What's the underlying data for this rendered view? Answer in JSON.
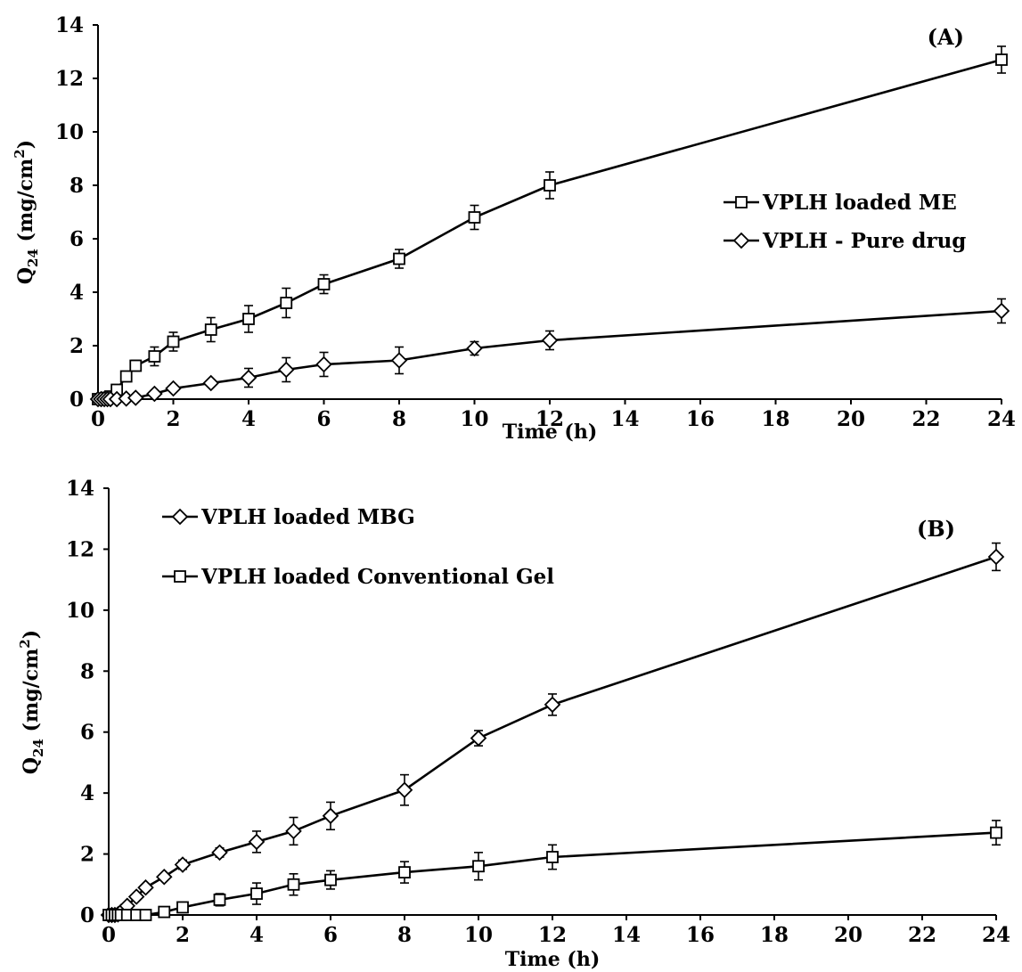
{
  "chart_data": [
    {
      "type": "line",
      "panel_label": "(A)",
      "xlabel": "Time (h)",
      "ylabel_main": "Q",
      "ylabel_sub": "24",
      "ylabel_unit": " (mg/cm",
      "ylabel_sup": "2",
      "ylabel_close": ")",
      "xlim": [
        0,
        24
      ],
      "ylim": [
        0,
        14
      ],
      "x_tick_labels": [
        "0",
        "2",
        "4",
        "6",
        "8",
        "10",
        "12",
        "14",
        "16",
        "18",
        "20",
        "22",
        "24"
      ],
      "y_tick_labels": [
        "0",
        "2",
        "4",
        "6",
        "8",
        "10",
        "12",
        "14"
      ],
      "legend_position": "right",
      "series": [
        {
          "name": "VPLH loaded ME",
          "marker": "square",
          "x": [
            0,
            0.083,
            0.167,
            0.25,
            0.33,
            0.5,
            0.75,
            1,
            1.5,
            2,
            3,
            4,
            5,
            6,
            8,
            10,
            12,
            24
          ],
          "y": [
            0,
            0,
            0.02,
            0.05,
            0.1,
            0.35,
            0.85,
            1.25,
            1.6,
            2.15,
            2.6,
            3.0,
            3.6,
            4.3,
            5.25,
            6.8,
            8.0,
            12.7
          ],
          "err": [
            0,
            0,
            0,
            0,
            0,
            0.1,
            0.15,
            0.2,
            0.35,
            0.35,
            0.45,
            0.5,
            0.55,
            0.35,
            0.35,
            0.45,
            0.5,
            0.5
          ]
        },
        {
          "name": "VPLH - Pure drug",
          "marker": "diamond",
          "x": [
            0,
            0.083,
            0.167,
            0.25,
            0.33,
            0.5,
            0.75,
            1,
            1.5,
            2,
            3,
            4,
            5,
            6,
            8,
            10,
            12,
            24
          ],
          "y": [
            0,
            0,
            0,
            0,
            0,
            0,
            0.02,
            0.05,
            0.2,
            0.4,
            0.6,
            0.8,
            1.1,
            1.3,
            1.45,
            1.9,
            2.2,
            3.3
          ],
          "err": [
            0,
            0,
            0,
            0,
            0,
            0,
            0,
            0,
            0,
            0.1,
            0.1,
            0.35,
            0.45,
            0.45,
            0.5,
            0.25,
            0.35,
            0.45
          ]
        }
      ]
    },
    {
      "type": "line",
      "panel_label": "(B)",
      "xlabel": "Time (h)",
      "ylabel_main": "Q",
      "ylabel_sub": "24",
      "ylabel_unit": " (mg/cm",
      "ylabel_sup": "2",
      "ylabel_close": ")",
      "xlim": [
        0,
        24
      ],
      "ylim": [
        0,
        14
      ],
      "x_tick_labels": [
        "0",
        "2",
        "4",
        "6",
        "8",
        "10",
        "12",
        "14",
        "16",
        "18",
        "20",
        "22",
        "24"
      ],
      "y_tick_labels": [
        "0",
        "2",
        "4",
        "6",
        "8",
        "10",
        "12",
        "14"
      ],
      "legend_position": "top-left",
      "series": [
        {
          "name": "VPLH loaded MBG",
          "marker": "diamond",
          "x": [
            0,
            0.083,
            0.167,
            0.25,
            0.33,
            0.5,
            0.75,
            1,
            1.5,
            2,
            3,
            4,
            5,
            6,
            8,
            10,
            12,
            24
          ],
          "y": [
            0,
            0,
            0,
            0.02,
            0.1,
            0.3,
            0.6,
            0.9,
            1.25,
            1.65,
            2.05,
            2.4,
            2.75,
            3.25,
            4.1,
            5.8,
            6.9,
            11.75
          ],
          "err": [
            0,
            0,
            0,
            0,
            0,
            0,
            0.1,
            0.1,
            0.1,
            0.15,
            0.15,
            0.35,
            0.45,
            0.45,
            0.5,
            0.25,
            0.35,
            0.45
          ]
        },
        {
          "name": "VPLH loaded Conventional Gel",
          "marker": "square",
          "x": [
            0,
            0.083,
            0.167,
            0.25,
            0.33,
            0.5,
            0.75,
            1,
            1.5,
            2,
            3,
            4,
            5,
            6,
            8,
            10,
            12,
            24
          ],
          "y": [
            0,
            0,
            0,
            0,
            0,
            0,
            0,
            0,
            0.1,
            0.25,
            0.5,
            0.7,
            1.0,
            1.15,
            1.4,
            1.6,
            1.9,
            2.7
          ],
          "err": [
            0,
            0,
            0,
            0,
            0,
            0,
            0,
            0,
            0,
            0.1,
            0.2,
            0.35,
            0.35,
            0.3,
            0.35,
            0.45,
            0.4,
            0.4
          ]
        }
      ]
    }
  ]
}
